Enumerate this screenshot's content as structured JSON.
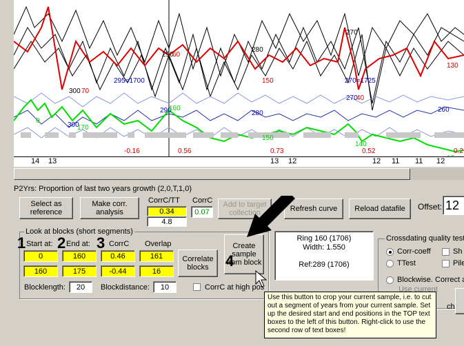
{
  "chart": {
    "annotations": [
      {
        "text": "290",
        "color": "#000"
      },
      {
        "text": "270",
        "color": "#000"
      },
      {
        "text": "280",
        "color": "#000"
      },
      {
        "text": "300",
        "color": "#000"
      },
      {
        "text": "70",
        "color": "#cc0000"
      },
      {
        "text": "295=1700",
        "color": "#0000cc"
      },
      {
        "text": "250",
        "color": "#000"
      },
      {
        "text": "280",
        "color": "#000"
      },
      {
        "text": "290",
        "color": "#0000cc"
      },
      {
        "text": "260",
        "color": "#0000cc"
      },
      {
        "text": "280",
        "color": "#0000cc"
      },
      {
        "text": "300",
        "color": "#0000cc"
      },
      {
        "text": "150",
        "color": "#cc0000"
      },
      {
        "text": "270=1725",
        "color": "#0000cc"
      },
      {
        "text": "270",
        "color": "#0000cc"
      },
      {
        "text": "40",
        "color": "#cc0000"
      },
      {
        "text": "130",
        "color": "#cc0000"
      },
      {
        "text": "260",
        "color": "#0000cc"
      },
      {
        "text": "60",
        "color": "#cc0000"
      },
      {
        "text": "150",
        "color": "#00cc00"
      },
      {
        "text": "140",
        "color": "#00cc00"
      },
      {
        "text": "170",
        "color": "#00cc00"
      },
      {
        "text": "-0.16",
        "color": "#cc0000"
      },
      {
        "text": "0.56",
        "color": "#cc0000"
      },
      {
        "text": "0.73",
        "color": "#cc0000"
      },
      {
        "text": "0.52",
        "color": "#cc0000"
      },
      {
        "text": "0.2",
        "color": "#cc0000"
      },
      {
        "text": "13",
        "color": "#00cc00"
      },
      {
        "text": "0",
        "color": "#00cc00"
      }
    ],
    "x_ticks": [
      "14",
      "13",
      "13",
      "12",
      "12",
      "11",
      "11",
      "12"
    ]
  },
  "status_line": "P2Yrs: Proportion of last two years growth (2,0,T,1,0)",
  "buttons": {
    "select_reference": "Select as reference",
    "make_corr": "Make corr. analysis",
    "add_target": "Add to target collection",
    "refresh_curve": "Refresh curve",
    "reload_datafile": "Reload datafile",
    "correlate_blocks": "Correlate blocks",
    "create_sample": "Create sample from block"
  },
  "corr_tt": {
    "label": "CorrC/TT",
    "value1": "0.34",
    "value2": "4.8"
  },
  "corrc": {
    "label": "CorrC",
    "value": "0.07"
  },
  "offset": {
    "label": "Offset:",
    "value": "12"
  },
  "blocks": {
    "legend": "Look at blocks (short segments)",
    "headers": {
      "start": "Start at:",
      "end": "End at:",
      "corrc": "CorrC",
      "overlap": "Overlap"
    },
    "row1": {
      "start": "0",
      "end": "160",
      "corrc": "0.46",
      "overlap": "161"
    },
    "row2": {
      "start": "160",
      "end": "175",
      "corrc": "-0.44",
      "overlap": "16"
    },
    "blocklength_label": "Blocklength:",
    "blocklength": "20",
    "blockdistance_label": "Blockdistance:",
    "blockdistance": "10",
    "corr_high_pos": "CorrC at high pos"
  },
  "numbers": [
    "1",
    "2",
    "3",
    "4"
  ],
  "ring_info": {
    "ring": "Ring 160  (1706)",
    "width": "Width: 1.550",
    "ref": "Ref:289  (1706)"
  },
  "crossdating": {
    "legend": "Crossdating quality test",
    "corr_coeff": "Corr-coeff",
    "ttest": "TTest",
    "blockwise": "Blockwise. Correct a",
    "opt_sh": "Sh",
    "opt_pile": "Pile",
    "use_current": "Use current",
    "ch": "ch"
  },
  "tooltip": "Use this button to crop your current sample, i.e. to cut out a segment of years from your current sample. Set up the desired start and end positions in the TOP text boxes to the left of this button. Right-click to use the second row of text boxes!",
  "colors": {
    "red": "#dd0000",
    "green": "#00dd00",
    "blue": "#2233aa",
    "lightblue": "#8899dd",
    "yellow": "#ffff00"
  }
}
